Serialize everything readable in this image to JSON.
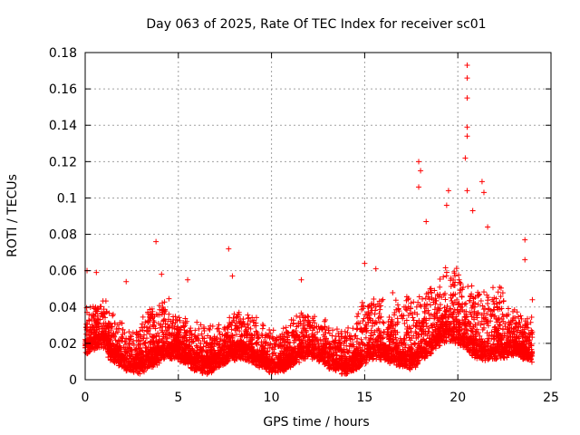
{
  "chart_data": {
    "type": "scatter",
    "title": "Day 063 of 2025, Rate Of TEC Index for receiver sc01",
    "xlabel": "GPS time / hours",
    "ylabel": "ROTI / TECUs",
    "xlim": [
      0,
      25
    ],
    "ylim": [
      0,
      0.18
    ],
    "xticks": [
      "0",
      "5",
      "10",
      "15",
      "20",
      "25"
    ],
    "yticks": [
      "0",
      "0.02",
      "0.04",
      "0.06",
      "0.08",
      "0.1",
      "0.12",
      "0.14",
      "0.16",
      "0.18"
    ],
    "grid": true,
    "marker": "+",
    "color": "#ff0000",
    "x_range": [
      0,
      24
    ],
    "series": [
      {
        "notable_points": [
          {
            "x": 0.1,
            "y": 0.06
          },
          {
            "x": 0.6,
            "y": 0.059
          },
          {
            "x": 2.2,
            "y": 0.054
          },
          {
            "x": 3.8,
            "y": 0.076
          },
          {
            "x": 4.1,
            "y": 0.058
          },
          {
            "x": 5.5,
            "y": 0.055
          },
          {
            "x": 7.7,
            "y": 0.072
          },
          {
            "x": 7.9,
            "y": 0.057
          },
          {
            "x": 11.6,
            "y": 0.055
          },
          {
            "x": 15.0,
            "y": 0.064
          },
          {
            "x": 15.6,
            "y": 0.061
          },
          {
            "x": 17.9,
            "y": 0.12
          },
          {
            "x": 18.0,
            "y": 0.115
          },
          {
            "x": 17.9,
            "y": 0.106
          },
          {
            "x": 18.3,
            "y": 0.087
          },
          {
            "x": 19.5,
            "y": 0.104
          },
          {
            "x": 19.4,
            "y": 0.096
          },
          {
            "x": 20.5,
            "y": 0.173
          },
          {
            "x": 20.5,
            "y": 0.166
          },
          {
            "x": 20.5,
            "y": 0.155
          },
          {
            "x": 20.5,
            "y": 0.139
          },
          {
            "x": 20.5,
            "y": 0.134
          },
          {
            "x": 20.4,
            "y": 0.122
          },
          {
            "x": 20.5,
            "y": 0.104
          },
          {
            "x": 20.8,
            "y": 0.093
          },
          {
            "x": 21.3,
            "y": 0.109
          },
          {
            "x": 21.4,
            "y": 0.103
          },
          {
            "x": 21.6,
            "y": 0.084
          },
          {
            "x": 23.6,
            "y": 0.077
          },
          {
            "x": 23.6,
            "y": 0.066
          },
          {
            "x": 24.0,
            "y": 0.044
          }
        ]
      }
    ]
  }
}
